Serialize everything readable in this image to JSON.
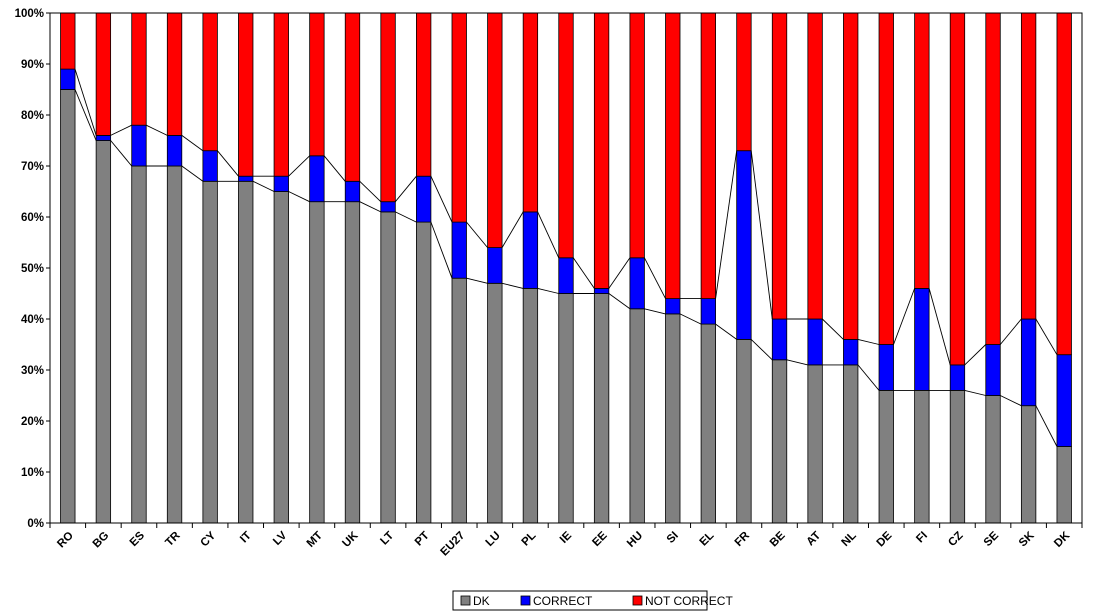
{
  "chart_data": {
    "type": "bar",
    "stacked": true,
    "percent": true,
    "categories": [
      "RO",
      "BG",
      "ES",
      "TR",
      "CY",
      "IT",
      "LV",
      "MT",
      "UK",
      "LT",
      "PT",
      "EU27",
      "LU",
      "PL",
      "IE",
      "EE",
      "HU",
      "SI",
      "EL",
      "FR",
      "BE",
      "AT",
      "NL",
      "DE",
      "FI",
      "CZ",
      "SE",
      "SK",
      "DK"
    ],
    "series": [
      {
        "name": "DK",
        "color": "#808080",
        "values": [
          85,
          75,
          70,
          70,
          67,
          67,
          65,
          63,
          63,
          61,
          59,
          48,
          47,
          46,
          45,
          45,
          42,
          41,
          39,
          36,
          32,
          31,
          31,
          26,
          26,
          26,
          25,
          23,
          15
        ]
      },
      {
        "name": "CORRECT",
        "color": "#0000ff",
        "values": [
          4,
          1,
          8,
          6,
          6,
          1,
          3,
          9,
          4,
          2,
          9,
          11,
          7,
          15,
          7,
          1,
          10,
          3,
          5,
          37,
          8,
          9,
          5,
          9,
          20,
          5,
          10,
          17,
          18
        ]
      },
      {
        "name": "NOT CORRECT",
        "color": "#ff0000",
        "values": [
          11,
          24,
          22,
          24,
          27,
          32,
          32,
          28,
          33,
          37,
          32,
          41,
          46,
          39,
          48,
          54,
          48,
          56,
          56,
          27,
          60,
          60,
          64,
          65,
          54,
          69,
          65,
          60,
          67
        ]
      }
    ],
    "ylim": [
      0,
      100
    ],
    "yticks": [
      "0%",
      "10%",
      "20%",
      "30%",
      "40%",
      "50%",
      "60%",
      "70%",
      "80%",
      "90%",
      "100%"
    ],
    "series_lines": true,
    "legend_position": "bottom-center",
    "grid": false
  }
}
